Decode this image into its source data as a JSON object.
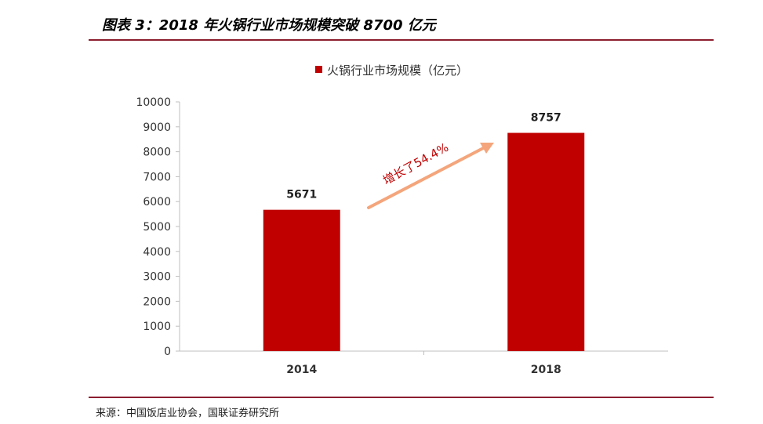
{
  "header": {
    "title": "图表 3：2018 年火锅行业市场规模突破 8700 亿元"
  },
  "footer": {
    "source": "来源：中国饭店业协会，国联证券研究所"
  },
  "colors": {
    "bar": "#c00000",
    "rule": "#8c1d2e",
    "arrow": "#f4a57b"
  },
  "chart_data": {
    "type": "bar",
    "categories": [
      "2014",
      "2018"
    ],
    "series": [
      {
        "name": "火锅行业市场规模（亿元）",
        "values": [
          5671,
          8757
        ]
      }
    ],
    "data_labels": [
      "5671",
      "8757"
    ],
    "yticks": [
      "0",
      "1000",
      "2000",
      "3000",
      "4000",
      "5000",
      "6000",
      "7000",
      "8000",
      "9000",
      "10000"
    ],
    "ylim": [
      0,
      10000
    ],
    "legend": "top-center",
    "annotation": "增长了54.4%",
    "title": "",
    "xlabel": "",
    "ylabel": ""
  }
}
